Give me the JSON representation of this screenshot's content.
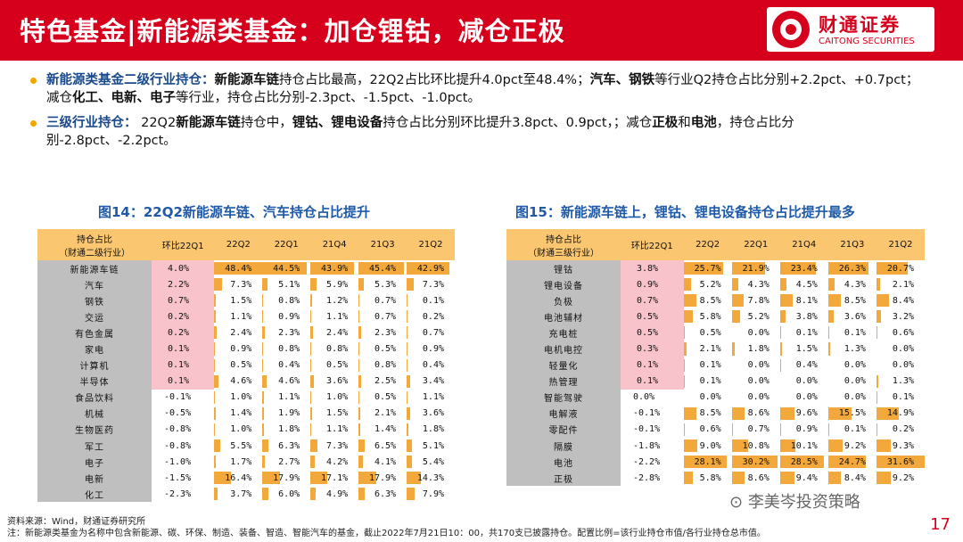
{
  "header": {
    "title": "特色基金|新能源类基金：加仓锂钴，减仓正极",
    "logo_cn": "财通证券",
    "logo_en": "CAITONG SECURITIES"
  },
  "bullets": [
    {
      "label": "新能源类基金二级行业持仓：",
      "parts": [
        {
          "b": "新能源车链"
        },
        {
          "t": "持仓占比最高，22Q2占比环比提升4.0pct至48.4%；"
        },
        {
          "b": "汽车、钢铁"
        },
        {
          "t": "等行业Q2持仓占比分别+2.2pct、+0.7pct；减仓"
        },
        {
          "b": "化工、电新、电子"
        },
        {
          "t": "等行业，持仓占比分别-2.3pct、-1.5pct、-1.0pct。"
        }
      ]
    },
    {
      "label": "三级行业持仓：",
      "parts": [
        {
          "t": "  22Q2"
        },
        {
          "b": "新能源车链"
        },
        {
          "t": "持仓中，"
        },
        {
          "b": "锂钴、锂电设备"
        },
        {
          "t": "持仓占比分别环比提升3.8pct、0.9pct，；减仓"
        },
        {
          "b": "正极"
        },
        {
          "t": "和"
        },
        {
          "b": "电池"
        },
        {
          "t": "，持仓占比分别-2.8pct、-2.2pct。"
        }
      ]
    }
  ],
  "figures": [
    {
      "title": "图14：22Q2新能源车链、汽车持仓占比提升",
      "name_header": [
        "持仓占比",
        "（财通二级行业）"
      ],
      "headers": [
        "环比22Q1",
        "22Q2",
        "22Q1",
        "21Q4",
        "21Q3",
        "21Q2"
      ],
      "rows": [
        [
          "新能源车链",
          "4.0%",
          "48.4%",
          "44.5%",
          "43.9%",
          "45.4%",
          "42.9%"
        ],
        [
          "汽车",
          "2.2%",
          "7.3%",
          "5.1%",
          "5.9%",
          "5.3%",
          "7.3%"
        ],
        [
          "钢铁",
          "0.7%",
          "1.5%",
          "0.8%",
          "1.2%",
          "0.7%",
          "0.1%"
        ],
        [
          "交运",
          "0.2%",
          "1.1%",
          "0.9%",
          "1.1%",
          "0.7%",
          "0.2%"
        ],
        [
          "有色金属",
          "0.2%",
          "2.4%",
          "2.3%",
          "2.4%",
          "2.3%",
          "0.7%"
        ],
        [
          "家电",
          "0.1%",
          "0.9%",
          "0.8%",
          "0.8%",
          "0.5%",
          "0.9%"
        ],
        [
          "计算机",
          "0.1%",
          "0.5%",
          "0.4%",
          "0.5%",
          "0.8%",
          "0.4%"
        ],
        [
          "半导体",
          "0.1%",
          "4.6%",
          "4.6%",
          "3.6%",
          "2.5%",
          "3.4%"
        ],
        [
          "食品饮料",
          "-0.1%",
          "1.0%",
          "1.1%",
          "1.0%",
          "0.5%",
          "1.1%"
        ],
        [
          "机械",
          "-0.5%",
          "1.4%",
          "1.9%",
          "1.5%",
          "2.1%",
          "3.6%"
        ],
        [
          "生物医药",
          "-0.8%",
          "1.0%",
          "1.8%",
          "1.1%",
          "1.4%",
          "1.8%"
        ],
        [
          "军工",
          "-0.8%",
          "5.5%",
          "6.3%",
          "7.3%",
          "6.5%",
          "5.1%"
        ],
        [
          "电子",
          "-1.0%",
          "1.7%",
          "2.7%",
          "4.2%",
          "4.1%",
          "5.4%"
        ],
        [
          "电新",
          "-1.5%",
          "16.4%",
          "17.9%",
          "17.1%",
          "17.9%",
          "14.3%"
        ],
        [
          "化工",
          "-2.3%",
          "3.7%",
          "6.0%",
          "4.9%",
          "6.3%",
          "7.9%"
        ]
      ]
    },
    {
      "title": "图15：新能源车链上，锂钴、锂电设备持仓占比提升最多",
      "name_header": [
        "持仓占比",
        "（财通三级行业）"
      ],
      "headers": [
        "环比22Q1",
        "22Q2",
        "22Q1",
        "21Q4",
        "21Q3",
        "21Q2"
      ],
      "rows": [
        [
          "锂钴",
          "3.8%",
          "25.7%",
          "21.9%",
          "23.4%",
          "26.3%",
          "20.7%"
        ],
        [
          "锂电设备",
          "0.9%",
          "5.2%",
          "4.3%",
          "4.5%",
          "4.3%",
          "2.1%"
        ],
        [
          "负极",
          "0.7%",
          "8.5%",
          "7.8%",
          "8.1%",
          "8.5%",
          "8.4%"
        ],
        [
          "电池辅材",
          "0.5%",
          "5.8%",
          "5.2%",
          "3.8%",
          "3.6%",
          "3.2%"
        ],
        [
          "充电桩",
          "0.5%",
          "0.5%",
          "0.0%",
          "0.1%",
          "0.1%",
          "0.6%"
        ],
        [
          "电机电控",
          "0.3%",
          "2.1%",
          "1.8%",
          "1.5%",
          "1.3%",
          "0.0%"
        ],
        [
          "轻量化",
          "0.1%",
          "0.1%",
          "0.0%",
          "0.4%",
          "0.0%",
          "0.0%"
        ],
        [
          "热管理",
          "0.1%",
          "0.1%",
          "0.0%",
          "0.0%",
          "0.0%",
          "1.3%"
        ],
        [
          "智能驾驶",
          "0.0%",
          "0.0%",
          "0.0%",
          "0.0%",
          "0.0%",
          "0.1%"
        ],
        [
          "电解液",
          "-0.1%",
          "8.5%",
          "8.6%",
          "9.6%",
          "15.5%",
          "14.9%"
        ],
        [
          "零配件",
          "-0.1%",
          "0.6%",
          "0.7%",
          "0.9%",
          "0.1%",
          "0.2%"
        ],
        [
          "隔膜",
          "-1.8%",
          "9.0%",
          "10.8%",
          "10.1%",
          "9.2%",
          "9.3%"
        ],
        [
          "电池",
          "-2.2%",
          "28.1%",
          "30.2%",
          "28.5%",
          "24.7%",
          "31.6%"
        ],
        [
          "正极",
          "-2.8%",
          "5.8%",
          "8.6%",
          "9.4%",
          "8.4%",
          "9.2%"
        ]
      ]
    }
  ],
  "footer": {
    "source": "资料来源：Wind，财通证券研究所",
    "note": "注：新能源类基金为名称中包含新能源、碳、环保、制造、装备、智造、智能汽车的基金，截止2022年7月21日10：00，共170支已披露持仓。配置比例=该行业持仓市值/各行业持仓总市值。",
    "watermark": "李美岑投资策略",
    "page": "17"
  },
  "colors": {
    "brand": "#d6001c",
    "header_fill": "#fac670",
    "bar": "#f2a83a",
    "pos": "#f9c3cb",
    "name_bg": "#bfbfbf"
  }
}
